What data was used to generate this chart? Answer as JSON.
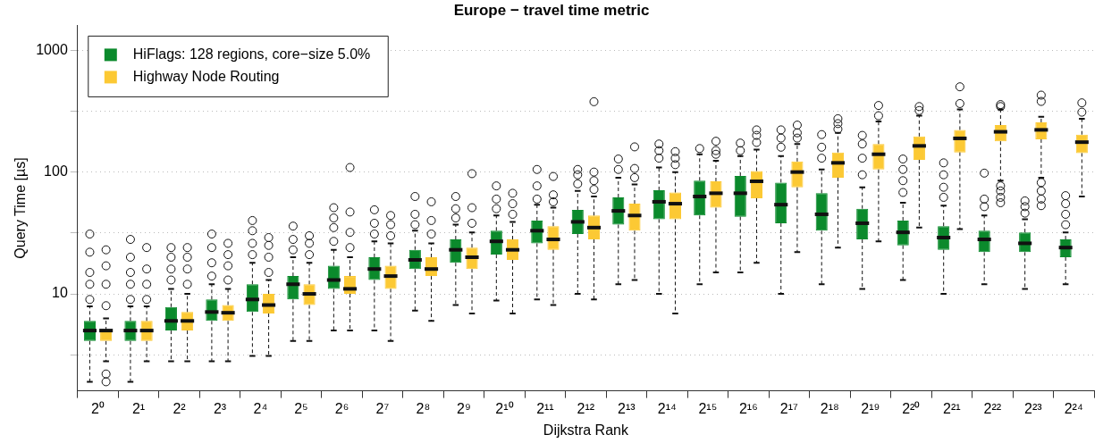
{
  "chart_data": {
    "type": "box",
    "title": "Europe − travel time metric",
    "xlabel": "Dijkstra Rank",
    "ylabel": "Query Time [µs]",
    "categories": [
      "2⁰",
      "2¹",
      "2²",
      "2³",
      "2⁴",
      "2⁵",
      "2⁶",
      "2⁷",
      "2⁸",
      "2⁹",
      "2¹⁰",
      "2¹¹",
      "2¹²",
      "2¹³",
      "2¹⁴",
      "2¹⁵",
      "2¹⁶",
      "2¹⁷",
      "2¹⁸",
      "2¹⁹",
      "2²⁰",
      "2²¹",
      "2²²",
      "2²³",
      "2²⁴"
    ],
    "log": true,
    "ylim": [
      1.6,
      1600
    ],
    "yticks": [
      {
        "value": 3.16,
        "label": null
      },
      10,
      {
        "value": 31.6,
        "label": null
      },
      100,
      {
        "value": 316,
        "label": null
      },
      1000
    ],
    "grid": "y",
    "legend": "top left",
    "series": [
      {
        "name": "HiFlags: 128 regions, core−size 5.0%",
        "color": "#0b8a2c",
        "boxes": [
          {
            "low": 1.9,
            "q1": 4.1,
            "median": 5.0,
            "q3": 6.0,
            "high": 7.9,
            "outliers": [
              9,
              12,
              15,
              22,
              31
            ]
          },
          {
            "low": 1.9,
            "q1": 4.1,
            "median": 5.0,
            "q3": 6.0,
            "high": 7.9,
            "outliers": [
              9,
              12,
              15,
              20,
              28
            ]
          },
          {
            "low": 2.8,
            "q1": 5.0,
            "median": 6.0,
            "q3": 7.8,
            "high": 11,
            "outliers": [
              13,
              16,
              20,
              24
            ]
          },
          {
            "low": 2.8,
            "q1": 6.0,
            "median": 7.1,
            "q3": 9.0,
            "high": 12,
            "outliers": [
              14,
              18,
              24,
              31
            ]
          },
          {
            "low": 3.1,
            "q1": 7.1,
            "median": 9.0,
            "q3": 12,
            "high": 18,
            "outliers": [
              21,
              26,
              33,
              40
            ]
          },
          {
            "low": 4.1,
            "q1": 9.0,
            "median": 12,
            "q3": 14,
            "high": 20,
            "outliers": [
              23,
              28,
              36
            ]
          },
          {
            "low": 5.0,
            "q1": 11,
            "median": 13,
            "q3": 17,
            "high": 23,
            "outliers": [
              27,
              35,
              42,
              51
            ]
          },
          {
            "low": 5.0,
            "q1": 13,
            "median": 16,
            "q3": 20,
            "high": 27,
            "outliers": [
              31,
              38,
              49
            ]
          },
          {
            "low": 7.3,
            "q1": 16,
            "median": 19,
            "q3": 23,
            "high": 33,
            "outliers": [
              37,
              45,
              63
            ]
          },
          {
            "low": 8.1,
            "q1": 18,
            "median": 23,
            "q3": 28,
            "high": 37,
            "outliers": [
              42,
              50,
              63
            ]
          },
          {
            "low": 8.8,
            "q1": 21,
            "median": 27,
            "q3": 33,
            "high": 44,
            "outliers": [
              50,
              60,
              77
            ]
          },
          {
            "low": 9.0,
            "q1": 26,
            "median": 33,
            "q3": 40,
            "high": 54,
            "outliers": [
              60,
              77,
              105
            ]
          },
          {
            "low": 10,
            "q1": 31,
            "median": 39,
            "q3": 49,
            "high": 70,
            "outliers": [
              80,
              95,
              105
            ]
          },
          {
            "low": 12,
            "q1": 37,
            "median": 48,
            "q3": 62,
            "high": 90,
            "outliers": [
              105,
              128
            ]
          },
          {
            "low": 10,
            "q1": 41,
            "median": 57,
            "q3": 71,
            "high": 109,
            "outliers": [
              130,
              150,
              170
            ]
          },
          {
            "low": 12,
            "q1": 44,
            "median": 63,
            "q3": 85,
            "high": 140,
            "outliers": [
              156
            ]
          },
          {
            "low": 15,
            "q1": 43,
            "median": 67,
            "q3": 93,
            "high": 135,
            "outliers": [
              150,
              173
            ]
          },
          {
            "low": 10,
            "q1": 38,
            "median": 54,
            "q3": 82,
            "high": 135,
            "outliers": [
              160,
              190,
              222
            ]
          },
          {
            "low": 12,
            "q1": 33,
            "median": 45,
            "q3": 67,
            "high": 105,
            "outliers": [
              130,
              160,
              203
            ]
          },
          {
            "low": 11,
            "q1": 28,
            "median": 38,
            "q3": 50,
            "high": 75,
            "outliers": [
              95,
              130,
              170,
              200
            ]
          },
          {
            "low": 13,
            "q1": 25,
            "median": 32,
            "q3": 40,
            "high": 56,
            "outliers": [
              68,
              85,
              105,
              128
            ]
          },
          {
            "low": 10,
            "q1": 23,
            "median": 29,
            "q3": 36,
            "high": 53,
            "outliers": [
              62,
              75,
              95,
              119
            ]
          },
          {
            "low": 12,
            "q1": 22,
            "median": 28,
            "q3": 33,
            "high": 44,
            "outliers": [
              52,
              60,
              98
            ]
          },
          {
            "low": 11,
            "q1": 22,
            "median": 26,
            "q3": 32,
            "high": 41,
            "outliers": [
              46,
              52,
              58
            ]
          },
          {
            "low": 12,
            "q1": 20,
            "median": 24,
            "q3": 28,
            "high": 32,
            "outliers": [
              37,
              45,
              55,
              64
            ]
          }
        ]
      },
      {
        "name": "Highway Node Routing",
        "color": "#fcc934",
        "boxes": [
          {
            "low": 2.8,
            "q1": 4.1,
            "median": 5.0,
            "q3": 5.0,
            "high": 6.3,
            "outliers": [
              1.9,
              2.2,
              8,
              12,
              17,
              23
            ]
          },
          {
            "low": 2.8,
            "q1": 4.1,
            "median": 5.0,
            "q3": 6.0,
            "high": 7.9,
            "outliers": [
              9,
              12,
              16,
              24
            ]
          },
          {
            "low": 2.8,
            "q1": 5.0,
            "median": 6.0,
            "q3": 7.1,
            "high": 10,
            "outliers": [
              12,
              16,
              20,
              24
            ]
          },
          {
            "low": 2.8,
            "q1": 6.0,
            "median": 7.0,
            "q3": 8.1,
            "high": 11,
            "outliers": [
              13,
              17,
              21,
              26
            ]
          },
          {
            "low": 3.1,
            "q1": 6.9,
            "median": 8.1,
            "q3": 10,
            "high": 13,
            "outliers": [
              15,
              20,
              25,
              29
            ]
          },
          {
            "low": 4.1,
            "q1": 8.1,
            "median": 10,
            "q3": 12,
            "high": 18,
            "outliers": [
              21,
              26,
              30
            ]
          },
          {
            "low": 5.0,
            "q1": 10,
            "median": 11,
            "q3": 14,
            "high": 20,
            "outliers": [
              24,
              32,
              47,
              109
            ]
          },
          {
            "low": 4.1,
            "q1": 11,
            "median": 14,
            "q3": 17,
            "high": 26,
            "outliers": [
              30,
              37,
              44
            ]
          },
          {
            "low": 6.0,
            "q1": 14,
            "median": 16,
            "q3": 20,
            "high": 26,
            "outliers": [
              31,
              40,
              57
            ]
          },
          {
            "low": 6.9,
            "q1": 16,
            "median": 20,
            "q3": 24,
            "high": 32,
            "outliers": [
              38,
              51,
              97
            ]
          },
          {
            "low": 6.9,
            "q1": 19,
            "median": 23,
            "q3": 28,
            "high": 39,
            "outliers": [
              45,
              55,
              67
            ]
          },
          {
            "low": 8.1,
            "q1": 23,
            "median": 28,
            "q3": 36,
            "high": 51,
            "outliers": [
              57,
              65,
              92
            ]
          },
          {
            "low": 9.0,
            "q1": 28,
            "median": 35,
            "q3": 44,
            "high": 63,
            "outliers": [
              72,
              85,
              100,
              378
            ]
          },
          {
            "low": 13,
            "q1": 33,
            "median": 44,
            "q3": 55,
            "high": 79,
            "outliers": [
              90,
              107,
              161
            ]
          },
          {
            "low": 6.9,
            "q1": 41,
            "median": 55,
            "q3": 68,
            "high": 100,
            "outliers": [
              115,
              130,
              147
            ]
          },
          {
            "low": 15,
            "q1": 51,
            "median": 67,
            "q3": 84,
            "high": 124,
            "outliers": [
              140,
              150,
              179
            ]
          },
          {
            "low": 18,
            "q1": 61,
            "median": 84,
            "q3": 102,
            "high": 153,
            "outliers": [
              175,
              200,
              222
            ]
          },
          {
            "low": 22,
            "q1": 75,
            "median": 100,
            "q3": 122,
            "high": 170,
            "outliers": [
              190,
              210,
              243
            ]
          },
          {
            "low": 24,
            "q1": 90,
            "median": 119,
            "q3": 145,
            "high": 210,
            "outliers": [
              225,
              250,
              274
            ]
          },
          {
            "low": 27,
            "q1": 105,
            "median": 140,
            "q3": 170,
            "high": 260,
            "outliers": [
              290,
              352
            ]
          },
          {
            "low": 35,
            "q1": 126,
            "median": 164,
            "q3": 196,
            "high": 290,
            "outliers": [
              320,
              345
            ]
          },
          {
            "low": 34,
            "q1": 145,
            "median": 189,
            "q3": 222,
            "high": 327,
            "outliers": [
              365,
              501
            ]
          },
          {
            "low": 85,
            "q1": 179,
            "median": 214,
            "q3": 243,
            "high": 327,
            "outliers": [
              56,
              62,
              70,
              77,
              345,
              358
            ]
          },
          {
            "low": 90,
            "q1": 186,
            "median": 222,
            "q3": 256,
            "high": 284,
            "outliers": [
              53,
              60,
              70,
              82,
              380,
              428
            ]
          },
          {
            "low": 63,
            "q1": 143,
            "median": 176,
            "q3": 203,
            "high": 274,
            "outliers": [
              310,
              370
            ]
          }
        ]
      }
    ]
  }
}
